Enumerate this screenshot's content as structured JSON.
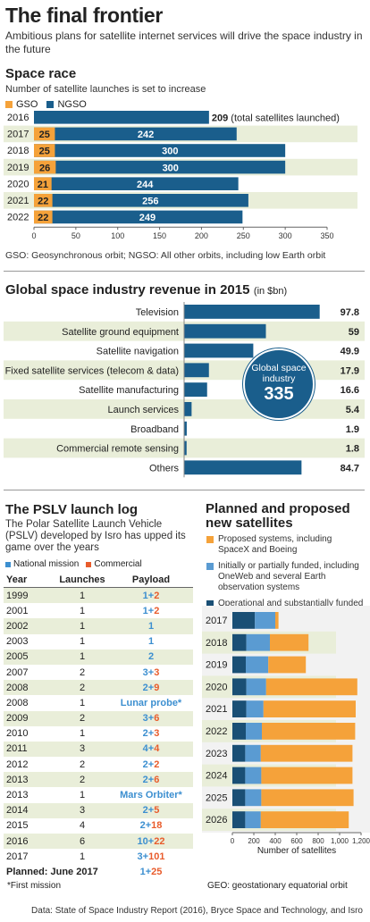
{
  "header": {
    "title": "The final frontier",
    "subtitle": "Ambitious plans for satellite internet services will drive the space industry in the future"
  },
  "space_race": {
    "heading": "Space race",
    "subheading": "Number of satellite launches is set to increase",
    "legend": {
      "gso": "GSO",
      "ngso": "NGSO"
    },
    "total_note": "(total satellites launched)",
    "footnote": "GSO: Geosynchronous orbit; NGSO: All other orbits, including low Earth orbit"
  },
  "revenue": {
    "heading": "Global space industry revenue in 2015",
    "unit": "(in $bn)",
    "circle_line1": "Global space",
    "circle_line2": "industry",
    "circle_value": "335"
  },
  "pslv": {
    "heading": "The PSLV launch log",
    "description": "The Polar Satellite Launch Vehicle (PSLV) developed by Isro has upped its game over the years",
    "legend": {
      "national": "National mission",
      "commercial": "Commercial"
    },
    "columns": [
      "Year",
      "Launches",
      "Payload"
    ],
    "rows": [
      {
        "year": "1999",
        "launches": "1",
        "national": "1",
        "commercial": "2",
        "text": ""
      },
      {
        "year": "2001",
        "launches": "1",
        "national": "1",
        "commercial": "2",
        "text": ""
      },
      {
        "year": "2002",
        "launches": "1",
        "national": "1",
        "commercial": "",
        "text": ""
      },
      {
        "year": "2003",
        "launches": "1",
        "national": "1",
        "commercial": "",
        "text": ""
      },
      {
        "year": "2005",
        "launches": "1",
        "national": "2",
        "commercial": "",
        "text": ""
      },
      {
        "year": "2007",
        "launches": "2",
        "national": "3",
        "commercial": "3",
        "text": ""
      },
      {
        "year": "2008",
        "launches": "2",
        "national": "2",
        "commercial": "9",
        "text": ""
      },
      {
        "year": "2008",
        "launches": "1",
        "national": "",
        "commercial": "",
        "text": "Lunar probe*"
      },
      {
        "year": "2009",
        "launches": "2",
        "national": "3",
        "commercial": "6",
        "text": ""
      },
      {
        "year": "2010",
        "launches": "1",
        "national": "2",
        "commercial": "3",
        "text": ""
      },
      {
        "year": "2011",
        "launches": "3",
        "national": "4",
        "commercial": "4",
        "text": ""
      },
      {
        "year": "2012",
        "launches": "2",
        "national": "2",
        "commercial": "2",
        "text": ""
      },
      {
        "year": "2013",
        "launches": "2",
        "national": "2",
        "commercial": "6",
        "text": ""
      },
      {
        "year": "2013",
        "launches": "1",
        "national": "",
        "commercial": "",
        "text": "Mars Orbiter*"
      },
      {
        "year": "2014",
        "launches": "3",
        "national": "2",
        "commercial": "5",
        "text": ""
      },
      {
        "year": "2015",
        "launches": "4",
        "national": "2",
        "commercial": "18",
        "text": ""
      },
      {
        "year": "2016",
        "launches": "6",
        "national": "10",
        "commercial": "22",
        "text": ""
      },
      {
        "year": "2017",
        "launches": "1",
        "national": "3",
        "commercial": "101",
        "text": ""
      }
    ],
    "planned": {
      "label": "Planned: June 2017",
      "national": "1",
      "commercial": "25"
    },
    "footnote": "*First mission"
  },
  "planned_sats": {
    "heading_line1": "Planned and proposed",
    "heading_line2": "new satellites",
    "legend": [
      "Proposed systems, including SpaceX and Boeing",
      "Initially or partially funded, including OneWeb and several Earth observation systems",
      "Operational and substantially funded systems, including known GEO systems and Iridium NEXT"
    ],
    "footnote": "GEO: geostationary equatorial orbit"
  },
  "source": "Data: State of Space Industry Report (2016), Bryce Space and Technology, and Isro",
  "colors": {
    "gso": "#f5a23a",
    "ngso": "#1a5e8c",
    "navy": "#1a4f75",
    "mid": "#5a9bd2",
    "orange": "#f5a23a",
    "band": "#e9eed9",
    "red": "#e85c2c",
    "blue": "#3c8fd0"
  },
  "chart_data": [
    {
      "type": "bar",
      "orientation": "horizontal",
      "stacked": true,
      "title": "Space race",
      "categories": [
        "2016",
        "2017",
        "2018",
        "2019",
        "2020",
        "2021",
        "2022"
      ],
      "series": [
        {
          "name": "GSO",
          "values": [
            null,
            25,
            25,
            26,
            21,
            22,
            22
          ]
        },
        {
          "name": "NGSO",
          "values": [
            null,
            null,
            null,
            null,
            null,
            null,
            null
          ]
        }
      ],
      "totals": [
        209,
        242,
        300,
        300,
        244,
        256,
        249
      ],
      "xlim": [
        0,
        350
      ],
      "xticks": [
        0,
        50,
        100,
        150,
        200,
        250,
        300,
        350
      ]
    },
    {
      "type": "bar",
      "orientation": "horizontal",
      "title": "Global space industry revenue in 2015",
      "categories": [
        "Television",
        "Satellite ground equipment",
        "Satellite navigation",
        "Fixed satellite services (telecom & data)",
        "Satellite manufacturing",
        "Launch services",
        "Broadband",
        "Commercial remote sensing",
        "Others"
      ],
      "values": [
        97.8,
        59,
        49.9,
        17.9,
        16.6,
        5.4,
        1.9,
        1.8,
        84.7
      ],
      "labels": [
        "97.8",
        "59",
        "49.9",
        "17.9",
        "16.6",
        "5.4",
        "1.9",
        "1.8",
        "84.7"
      ],
      "xlim": [
        0,
        100
      ]
    },
    {
      "type": "bar",
      "orientation": "horizontal",
      "stacked": true,
      "title": "Planned and proposed new satellites",
      "xlabel": "Number of satellites",
      "categories": [
        "2017",
        "2018",
        "2019",
        "2020",
        "2021",
        "2022",
        "2023",
        "2024",
        "2025",
        "2026"
      ],
      "series": [
        {
          "values": [
            210,
            130,
            125,
            130,
            130,
            125,
            120,
            120,
            120,
            120
          ]
        },
        {
          "values": [
            190,
            220,
            210,
            185,
            160,
            150,
            145,
            150,
            150,
            145
          ]
        },
        {
          "values": [
            30,
            360,
            350,
            850,
            860,
            870,
            855,
            850,
            860,
            820
          ]
        }
      ],
      "xlim": [
        0,
        1200
      ],
      "xticks": [
        0,
        200,
        400,
        600,
        800,
        1000,
        1200
      ],
      "xtick_labels": [
        "0",
        "200",
        "400",
        "600",
        "800",
        "1,000",
        "1,200"
      ]
    }
  ]
}
